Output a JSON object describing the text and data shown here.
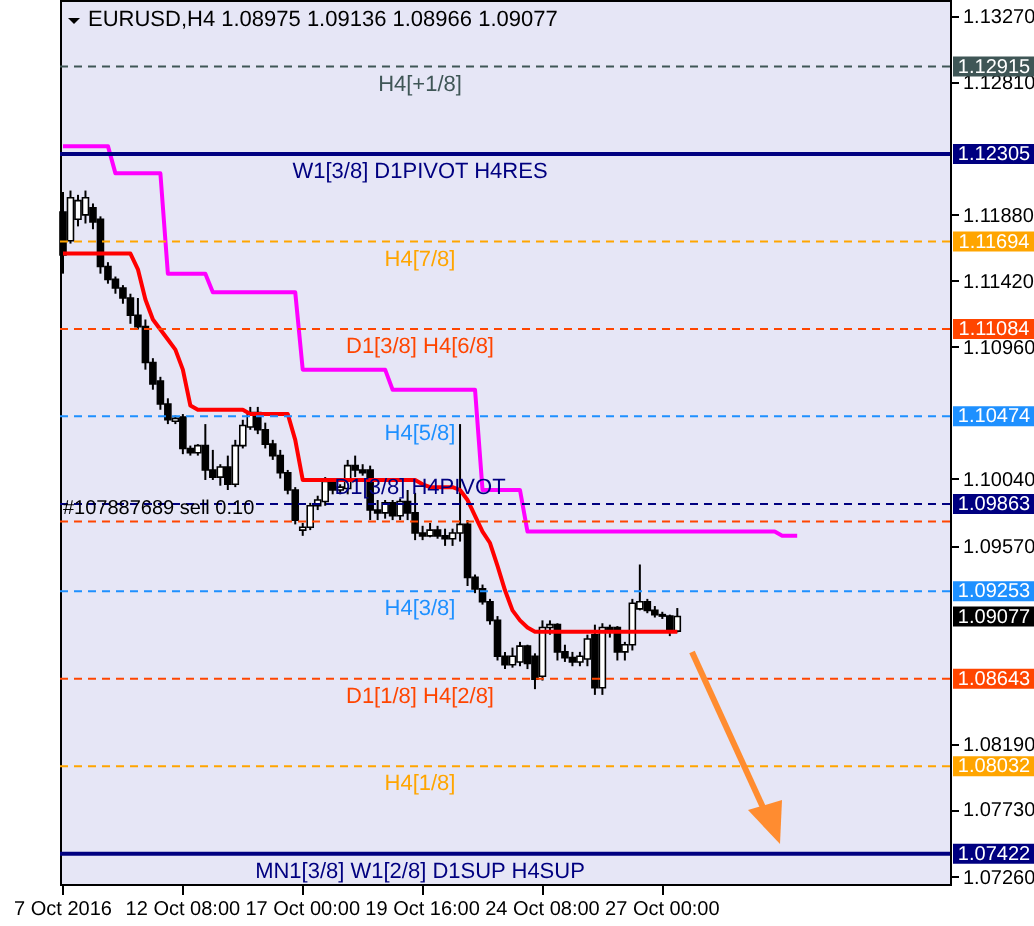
{
  "chart_data": {
    "type": "candlestick",
    "title": "EURUSD,H4 1.08975 1.09136 1.08966 1.09077",
    "categories": [
      "7 Oct 2016",
      null,
      null,
      null,
      null,
      null,
      null,
      null,
      null,
      null,
      null,
      null,
      null,
      null,
      null,
      null,
      "12 Oct 08:00",
      null,
      null,
      null,
      null,
      null,
      null,
      null,
      null,
      null,
      null,
      null,
      null,
      null,
      null,
      null,
      "17 Oct 00:00",
      null,
      null,
      null,
      null,
      null,
      null,
      null,
      null,
      null,
      null,
      null,
      null,
      null,
      null,
      null,
      "19 Oct 16:00",
      null,
      null,
      null,
      null,
      null,
      null,
      null,
      null,
      null,
      null,
      null,
      null,
      null,
      null,
      null,
      "24 Oct 08:00",
      null,
      null,
      null,
      null,
      null,
      null,
      null,
      null,
      null,
      null,
      null,
      null,
      null,
      null,
      null,
      "27 Oct 00:00",
      null,
      null,
      null,
      null,
      null,
      null,
      null,
      null,
      null,
      null,
      null,
      null,
      null,
      null,
      null,
      null,
      null,
      null,
      null,
      null,
      null,
      null,
      null,
      null,
      null,
      null,
      null,
      null,
      null,
      null,
      null,
      null,
      null,
      null,
      null,
      null,
      null,
      null
    ],
    "ohlc": [
      [
        1.119,
        1.1204,
        1.1147,
        1.116
      ],
      [
        1.117,
        1.1205,
        1.1168,
        1.12
      ],
      [
        1.1185,
        1.1202,
        1.118,
        1.1198
      ],
      [
        1.1188,
        1.1205,
        1.1182,
        1.12
      ],
      [
        1.1193,
        1.1196,
        1.1178,
        1.1183
      ],
      [
        1.1185,
        1.1187,
        1.1147,
        1.1152
      ],
      [
        1.1152,
        1.1155,
        1.114,
        1.1143
      ],
      [
        1.1143,
        1.1145,
        1.1133,
        1.1137
      ],
      [
        1.1137,
        1.1139,
        1.1126,
        1.113
      ],
      [
        1.113,
        1.1133,
        1.1112,
        1.1118
      ],
      [
        1.1118,
        1.113,
        1.1108,
        1.111
      ],
      [
        1.111,
        1.1115,
        1.108,
        1.1085
      ],
      [
        1.1085,
        1.1088,
        1.1066,
        1.107
      ],
      [
        1.1072,
        1.1075,
        1.1052,
        1.1056
      ],
      [
        1.1056,
        1.106,
        1.1042,
        1.1045
      ],
      [
        1.1044,
        1.1048,
        1.1042,
        1.1046
      ],
      [
        1.1047,
        1.1049,
        1.1021,
        1.1025
      ],
      [
        1.1025,
        1.1027,
        1.102,
        1.1022
      ],
      [
        1.1022,
        1.1028,
        1.102,
        1.1027
      ],
      [
        1.1027,
        1.1042,
        1.1003,
        1.101
      ],
      [
        1.101,
        1.1024,
        1.1003,
        1.1005
      ],
      [
        1.1005,
        1.1014,
        1.0999,
        1.1012
      ],
      [
        1.1012,
        1.102,
        1.0996,
        1.1
      ],
      [
        1.1,
        1.1031,
        1.0998,
        1.1027
      ],
      [
        1.1027,
        1.1045,
        1.1025,
        1.1041
      ],
      [
        1.104,
        1.1054,
        1.1038,
        1.105
      ],
      [
        1.105,
        1.1054,
        1.1035,
        1.1038
      ],
      [
        1.1038,
        1.1043,
        1.1025,
        1.1028
      ],
      [
        1.1028,
        1.1031,
        1.1017,
        1.102
      ],
      [
        1.102,
        1.1024,
        1.1004,
        1.1008
      ],
      [
        1.1008,
        1.101,
        1.0993,
        1.0996
      ],
      [
        1.0996,
        1.0998,
        1.0972,
        1.0975
      ],
      [
        1.0968,
        1.0973,
        1.0964,
        1.097
      ],
      [
        1.097,
        1.0987,
        1.0968,
        1.0985
      ],
      [
        1.0985,
        1.0992,
        1.0982,
        1.0989
      ],
      [
        1.0988,
        1.1005,
        1.0985,
        1.1002
      ],
      [
        1.1002,
        1.1004,
        1.0993,
        1.0996
      ],
      [
        1.0996,
        1.1,
        1.0993,
        1.0998
      ],
      [
        1.0997,
        1.1017,
        1.0993,
        1.1013
      ],
      [
        1.1013,
        1.102,
        1.1005,
        1.101
      ],
      [
        1.101,
        1.1014,
        1.1006,
        1.1008
      ],
      [
        1.101,
        1.1013,
        1.0975,
        1.0982
      ],
      [
        1.0982,
        1.0989,
        1.0975,
        1.098
      ],
      [
        1.098,
        1.0989,
        1.0976,
        1.0987
      ],
      [
        1.0987,
        1.0989,
        1.0975,
        1.0978
      ],
      [
        1.0978,
        1.099,
        1.0975,
        1.0988
      ],
      [
        1.0988,
        1.0996,
        1.0975,
        1.098
      ],
      [
        1.098,
        1.0994,
        1.0961,
        1.0966
      ],
      [
        1.0966,
        1.0971,
        1.0961,
        1.0964
      ],
      [
        1.0964,
        1.0973,
        1.0963,
        1.0968
      ],
      [
        1.0968,
        1.0971,
        1.0962,
        1.0964
      ],
      [
        1.0964,
        1.0969,
        1.0957,
        1.0962
      ],
      [
        1.0962,
        1.0969,
        1.0957,
        1.0966
      ],
      [
        1.0966,
        1.1042,
        1.096,
        1.0972
      ],
      [
        1.0972,
        1.0975,
        1.0929,
        1.0935
      ],
      [
        1.0935,
        1.0937,
        1.0924,
        1.0927
      ],
      [
        1.0927,
        1.093,
        1.0916,
        1.0918
      ],
      [
        1.0918,
        1.092,
        1.0902,
        1.0905
      ],
      [
        1.0905,
        1.0908,
        1.0877,
        1.088
      ],
      [
        1.088,
        1.0883,
        1.0871,
        1.0874
      ],
      [
        1.0874,
        1.0886,
        1.0872,
        1.088
      ],
      [
        1.0876,
        1.089,
        1.0873,
        1.0887
      ],
      [
        1.0887,
        1.0888,
        1.0871,
        1.0875
      ],
      [
        1.088,
        1.0882,
        1.0857,
        1.0864
      ],
      [
        1.0866,
        1.0905,
        1.0863,
        1.09
      ],
      [
        1.09,
        1.0905,
        1.0895,
        1.0902
      ],
      [
        1.0902,
        1.0903,
        1.0877,
        1.0883
      ],
      [
        1.0883,
        1.0888,
        1.0876,
        1.0879
      ],
      [
        1.0879,
        1.0883,
        1.0873,
        1.0876
      ],
      [
        1.0876,
        1.0883,
        1.0873,
        1.088
      ],
      [
        1.0878,
        1.0895,
        1.0873,
        1.0892
      ],
      [
        1.0895,
        1.0902,
        1.0853,
        1.0858
      ],
      [
        1.0858,
        1.0903,
        1.0853,
        1.09
      ],
      [
        1.09,
        1.0902,
        1.0893,
        1.0897
      ],
      [
        1.09,
        1.0901,
        1.0877,
        1.0883
      ],
      [
        1.0883,
        1.089,
        1.0877,
        1.0888
      ],
      [
        1.0888,
        1.092,
        1.0884,
        1.0917
      ],
      [
        1.0913,
        1.0944,
        1.0912,
        1.0918
      ],
      [
        1.0918,
        1.092,
        1.091,
        1.0912
      ],
      [
        1.0912,
        1.0915,
        1.0907,
        1.0909
      ],
      [
        1.0909,
        1.0911,
        1.0906,
        1.0908
      ],
      [
        1.0908,
        1.0909,
        1.0894,
        1.0898
      ],
      [
        1.08975,
        1.09136,
        1.08966,
        1.09077
      ],
      null,
      null,
      null,
      null,
      null,
      null,
      null,
      null,
      null,
      null,
      null,
      null,
      null,
      null,
      null,
      null,
      null,
      null,
      null,
      null,
      null,
      null,
      null,
      null,
      null,
      null,
      null,
      null,
      null,
      null,
      null,
      null,
      null,
      null,
      null,
      null
    ],
    "series": [
      {
        "type": "line",
        "color": "#ff0000",
        "values": [
          1.1161,
          1.1161,
          1.1161,
          1.1161,
          1.1161,
          1.1161,
          1.1161,
          1.1161,
          1.1161,
          1.1161,
          1.115,
          1.1129,
          1.1115,
          1.1108,
          1.1101,
          1.1094,
          1.108,
          1.1055,
          1.1052,
          1.1052,
          1.1052,
          1.1052,
          1.1052,
          1.1052,
          1.1052,
          1.1049,
          1.1049,
          1.1049,
          1.1049,
          1.1049,
          1.1049,
          1.1031,
          1.1003,
          1.1003,
          1.1003,
          1.1003,
          1.1003,
          1.1003,
          1.1003,
          1.1003,
          1.1003,
          1.1003,
          1.1003,
          1.1003,
          1.1003,
          1.1003,
          1.1003,
          1.1003,
          1.1,
          1.0998,
          1.0998,
          1.0998,
          1.0998,
          1.0996,
          1.0989,
          1.0978,
          1.0967,
          1.0959,
          1.0943,
          1.0926,
          1.0912,
          1.0905,
          1.09,
          1.0897,
          1.0897,
          1.0897,
          1.0897,
          1.0897,
          1.0897,
          1.0897,
          1.0897,
          1.0897,
          1.0897,
          1.0897,
          1.0897,
          1.0897,
          1.0897,
          1.0897,
          1.0897,
          1.0897,
          1.0897,
          1.0897,
          1.0897,
          null,
          null,
          null,
          null,
          null,
          null,
          null,
          null,
          null,
          null,
          null,
          null,
          null,
          null,
          null,
          null,
          null,
          null,
          null,
          null,
          null,
          null,
          null,
          null,
          null,
          null,
          null,
          null,
          null,
          null,
          null,
          null,
          null,
          null,
          null,
          null
        ]
      },
      {
        "type": "line",
        "color": "#ff00ff",
        "values": [
          1.1236,
          1.1236,
          1.1236,
          1.1236,
          1.1236,
          1.1236,
          1.1236,
          1.1217,
          1.1217,
          1.1217,
          1.1217,
          1.1217,
          1.1217,
          1.1217,
          1.1147,
          1.1147,
          1.1147,
          1.1147,
          1.1147,
          1.1147,
          1.1134,
          1.1134,
          1.1134,
          1.1134,
          1.1134,
          1.1134,
          1.1134,
          1.1134,
          1.1134,
          1.1134,
          1.1134,
          1.1134,
          1.108,
          1.108,
          1.108,
          1.108,
          1.108,
          1.108,
          1.108,
          1.108,
          1.108,
          1.108,
          1.108,
          1.108,
          1.1066,
          1.1066,
          1.1066,
          1.1066,
          1.1066,
          1.1066,
          1.1066,
          1.1066,
          1.1066,
          1.1066,
          1.1066,
          1.1066,
          1.0996,
          1.0996,
          1.0996,
          1.0996,
          1.0996,
          1.0996,
          1.0967,
          1.0967,
          1.0967,
          1.0967,
          1.0967,
          1.0967,
          1.0967,
          1.0967,
          1.0967,
          1.0967,
          1.0967,
          1.0967,
          1.0967,
          1.0967,
          1.0967,
          1.0967,
          1.0967,
          1.0967,
          1.0967,
          1.0967,
          1.0967,
          1.0967,
          1.0967,
          1.0967,
          1.0967,
          1.0967,
          1.0967,
          1.0967,
          1.0967,
          1.0967,
          1.0967,
          1.0967,
          1.0967,
          1.0967,
          1.0964,
          1.0964,
          1.0964,
          null,
          null,
          null,
          null,
          null,
          null,
          null,
          null,
          null,
          null,
          null,
          null,
          null,
          null,
          null,
          null,
          null,
          null,
          null,
          null
        ]
      }
    ],
    "ylim": [
      1.0721,
      1.1338
    ],
    "yticks": [
      {
        "value": 1.1327,
        "label": "1.13270"
      },
      {
        "value": 1.1281,
        "label": "1.12810"
      },
      {
        "value": 1.1188,
        "label": "1.11880"
      },
      {
        "value": 1.1142,
        "label": "1.11420"
      },
      {
        "value": 1.1096,
        "label": "1.10960"
      },
      {
        "value": 1.1004,
        "label": "1.10040"
      },
      {
        "value": 1.0957,
        "label": "1.09570"
      },
      {
        "value": 1.0819,
        "label": "1.08190"
      },
      {
        "value": 1.0773,
        "label": "1.07730"
      },
      {
        "value": 1.0726,
        "label": "1.07260"
      }
    ],
    "ref_lines": [
      {
        "axis": "y",
        "value": 1.12915,
        "label": "H4[+1/8]",
        "color": "#3f5656",
        "line_style": "dashed"
      },
      {
        "axis": "y",
        "value": 1.12305,
        "label": "W1[3/8] D1PIVOT H4RES",
        "color": "#000080",
        "line_style": "solid"
      },
      {
        "axis": "y",
        "value": 1.11694,
        "label": "H4[7/8]",
        "color": "#ffa500",
        "line_style": "dashed"
      },
      {
        "axis": "y",
        "value": 1.11084,
        "label": "D1[3/8] H4[6/8]",
        "color": "#ff4500",
        "line_style": "dashed"
      },
      {
        "axis": "y",
        "value": 1.10474,
        "label": "H4[5/8]",
        "color": "#1e90ff",
        "line_style": "dashed"
      },
      {
        "axis": "y",
        "value": 1.09863,
        "label": "D1[3/8] H4PIVOT",
        "color": "#000080",
        "line_style": "dashed"
      },
      {
        "axis": "y",
        "value": 1.09253,
        "label": "H4[3/8]",
        "color": "#1e90ff",
        "line_style": "dashed"
      },
      {
        "axis": "y",
        "value": 1.08643,
        "label": "D1[1/8] H4[2/8]",
        "color": "#ff4500",
        "line_style": "dashed"
      },
      {
        "axis": "y",
        "value": 1.08032,
        "label": "H4[1/8]",
        "color": "#ffa500",
        "line_style": "dashed"
      },
      {
        "axis": "y",
        "value": 1.07422,
        "label": "MN1[3/8] W1[2/8] D1SUP H4SUP",
        "color": "#000080",
        "line_style": "solid"
      },
      {
        "axis": "y",
        "value": 1.0974,
        "color": "#ff4500",
        "line_style": "dashed"
      }
    ],
    "annotations": [
      {
        "text": "#107887689 sell 0.10",
        "x": "7 Oct 2016",
        "y": 1.0974
      },
      "1.12915",
      "1.12305",
      "1.11694",
      "1.11084",
      "1.10474",
      "1.09863",
      "1.09253",
      "1.09077",
      "1.08643",
      "1.08032",
      "1.07422"
    ],
    "grid": false
  }
}
